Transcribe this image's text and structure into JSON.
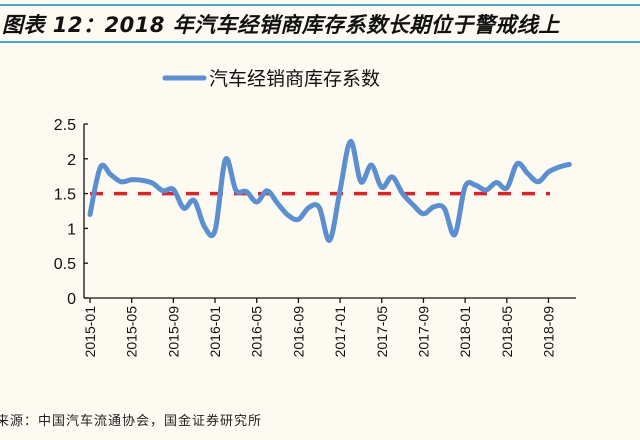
{
  "title": "图表 12：2018 年汽车经销商库存系数长期位于警戒线上",
  "source": "来源：中国汽车流通协会，国金证券研究所",
  "colors": {
    "series": "#5b8fd0",
    "threshold": "#d9242b",
    "rule": "#4aa3c9"
  },
  "chart_data": {
    "type": "line",
    "title": "",
    "xlabel": "",
    "ylabel": "",
    "ylim": [
      0,
      2.5
    ],
    "yticks": [
      "0",
      "0.5",
      "1",
      "1.5",
      "2",
      "2.5"
    ],
    "grid": false,
    "legend_position": "top-center",
    "xtick_labels": [
      "2015-01",
      "2015-05",
      "2015-09",
      "2016-01",
      "2016-05",
      "2016-09",
      "2017-01",
      "2017-05",
      "2017-09",
      "2018-01",
      "2018-05",
      "2018-09"
    ],
    "x": [
      "2015-01",
      "2015-02",
      "2015-03",
      "2015-04",
      "2015-05",
      "2015-06",
      "2015-07",
      "2015-08",
      "2015-09",
      "2015-10",
      "2015-11",
      "2015-12",
      "2016-01",
      "2016-02",
      "2016-03",
      "2016-04",
      "2016-05",
      "2016-06",
      "2016-07",
      "2016-08",
      "2016-09",
      "2016-10",
      "2016-11",
      "2016-12",
      "2017-01",
      "2017-02",
      "2017-03",
      "2017-04",
      "2017-05",
      "2017-06",
      "2017-07",
      "2017-08",
      "2017-09",
      "2017-10",
      "2017-11",
      "2017-12",
      "2018-01",
      "2018-02",
      "2018-03",
      "2018-04",
      "2018-05",
      "2018-06",
      "2018-07",
      "2018-08",
      "2018-09",
      "2018-10",
      "2018-11"
    ],
    "series": [
      {
        "name": "汽车经销商库存系数",
        "values": [
          1.2,
          1.88,
          1.77,
          1.67,
          1.7,
          1.69,
          1.65,
          1.54,
          1.56,
          1.29,
          1.4,
          1.02,
          0.97,
          1.99,
          1.55,
          1.53,
          1.38,
          1.54,
          1.36,
          1.19,
          1.13,
          1.3,
          1.3,
          0.83,
          1.55,
          2.25,
          1.67,
          1.91,
          1.59,
          1.74,
          1.5,
          1.34,
          1.21,
          1.31,
          1.29,
          0.91,
          1.6,
          1.62,
          1.55,
          1.66,
          1.58,
          1.93,
          1.79,
          1.67,
          1.81,
          1.88,
          1.92
        ]
      }
    ],
    "threshold": {
      "value": 1.5,
      "style": "dashed"
    }
  }
}
